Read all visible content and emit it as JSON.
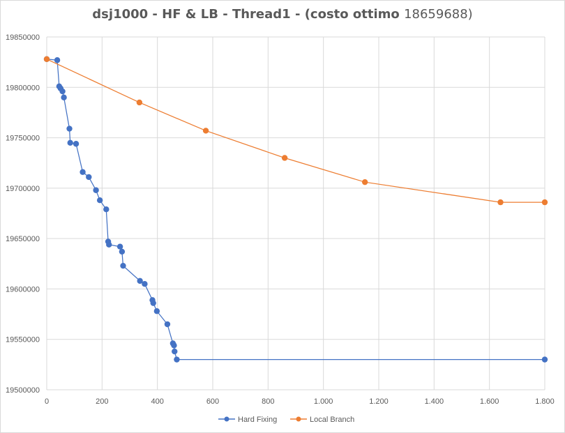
{
  "chart_data": {
    "type": "scatter",
    "title": "dsj1000 - HF & LB - Thread1 - (costo ottimo",
    "title_suffix": "18659688)",
    "xlabel": "",
    "ylabel": "",
    "xlim": [
      0,
      1800
    ],
    "ylim": [
      19500000,
      19850000
    ],
    "x_ticks": [
      0,
      200,
      400,
      600,
      800,
      1000,
      1200,
      1400,
      1600,
      1800
    ],
    "x_tick_labels": [
      "0",
      "200",
      "400",
      "600",
      "800",
      "1.000",
      "1.200",
      "1.400",
      "1.600",
      "1.800"
    ],
    "y_ticks": [
      19500000,
      19550000,
      19600000,
      19650000,
      19700000,
      19750000,
      19800000,
      19850000
    ],
    "y_tick_labels": [
      "19500000",
      "19550000",
      "19600000",
      "19650000",
      "19700000",
      "19750000",
      "19800000",
      "19850000"
    ],
    "grid": true,
    "legend_position": "bottom",
    "series": [
      {
        "name": "Hard Fixing",
        "color": "#4472c4",
        "x": [
          0,
          38,
          45,
          50,
          57,
          62,
          82,
          85,
          106,
          130,
          152,
          178,
          192,
          215,
          222,
          225,
          265,
          272,
          276,
          337,
          354,
          382,
          385,
          398,
          436,
          456,
          460,
          462,
          470,
          1800
        ],
        "y": [
          19828000,
          19827000,
          19801000,
          19799000,
          19796000,
          19790000,
          19759000,
          19745000,
          19744000,
          19716000,
          19711000,
          19698000,
          19688000,
          19679000,
          19647000,
          19644000,
          19642000,
          19637000,
          19623000,
          19608000,
          19605000,
          19589000,
          19586000,
          19578000,
          19565000,
          19546000,
          19544000,
          19538000,
          19530000,
          19530000
        ]
      },
      {
        "name": "Local Branch",
        "color": "#ed7d31",
        "x": [
          0,
          335,
          575,
          860,
          1150,
          1640,
          1800
        ],
        "y": [
          19828000,
          19785000,
          19757000,
          19730000,
          19706000,
          19686000,
          19686000
        ]
      }
    ]
  }
}
